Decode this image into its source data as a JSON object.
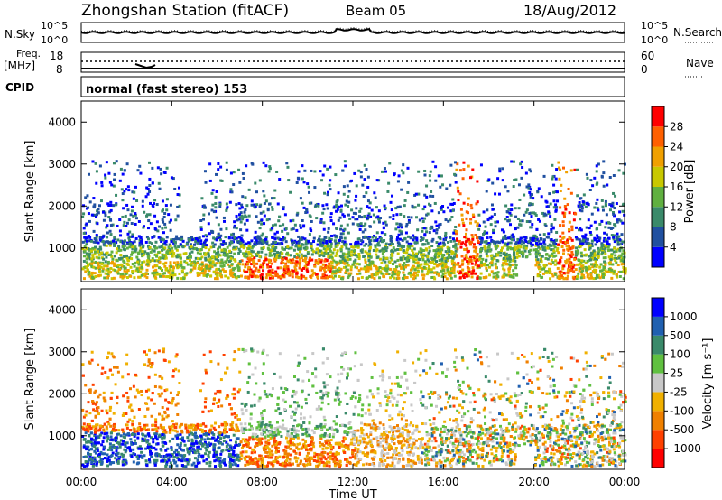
{
  "header": {
    "station": "Zhongshan Station (fitACF)",
    "beam": "Beam 05",
    "date": "18/Aug/2012"
  },
  "strip_labels": {
    "nsky": "N.Sky",
    "nsearch": "N.Search",
    "freq_line1": "Freq.",
    "freq_line2": "[MHz]",
    "nave": "Nave",
    "cpid": "CPID",
    "cpid_value": "normal (fast stereo) 153"
  },
  "strip_ticks": {
    "noise_left_top": "10^5",
    "noise_left_bottom": "10^0",
    "noise_right_top": "10^5",
    "noise_right_bottom": "10^0",
    "freq_left_top": "18",
    "freq_left_bottom": "8",
    "freq_right_top": "60",
    "freq_right_bottom": "0"
  },
  "colors": {
    "power_scale": [
      "#0000ff",
      "#2050a0",
      "#3a8a6a",
      "#60b040",
      "#c8c800",
      "#f0a000",
      "#ff6000",
      "#ff0000"
    ],
    "velocity_scale": [
      "#ff0000",
      "#ff4000",
      "#f08000",
      "#f0b000",
      "#c8c8c8",
      "#60c040",
      "#3a8a6a",
      "#2060b0",
      "#0000ff"
    ]
  },
  "chart_data": [
    {
      "type": "heatmap",
      "panel": "power",
      "ylabel": "Slant Range [km]",
      "yticks": [
        "1000",
        "2000",
        "3000",
        "4000"
      ],
      "ylim": [
        200,
        4500
      ],
      "xlim_hours": [
        0,
        24
      ],
      "colorbar_label": "Power [dB]",
      "colorbar_ticks": [
        "4",
        "8",
        "12",
        "16",
        "20",
        "24",
        "28"
      ],
      "colorbar_range": [
        0,
        30
      ]
    },
    {
      "type": "heatmap",
      "panel": "velocity",
      "ylabel": "Slant Range [km]",
      "yticks": [
        "1000",
        "2000",
        "3000",
        "4000"
      ],
      "ylim": [
        200,
        4500
      ],
      "xlim_hours": [
        0,
        24
      ],
      "xlabel": "Time UT",
      "xticks": [
        "00:00",
        "04:00",
        "08:00",
        "12:00",
        "16:00",
        "20:00",
        "00:00"
      ],
      "colorbar_label": "Velocity [m s⁻¹]",
      "colorbar_ticks": [
        "1000",
        "500",
        "100",
        "25",
        "-25",
        "-100",
        "-500",
        "-1000"
      ]
    }
  ]
}
